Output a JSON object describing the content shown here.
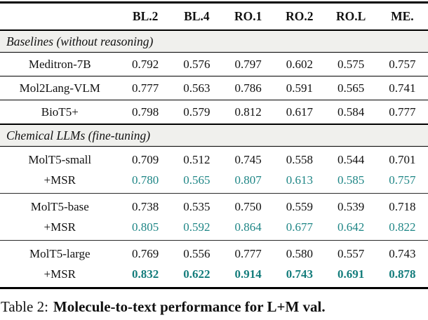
{
  "colors": {
    "highlight_teal": "#1f8686",
    "highlight_teal_bold": "#157d7c",
    "section_band_bg": "#f0f0ed",
    "rule_color": "#000000"
  },
  "header": {
    "cols": [
      "BL.2",
      "BL.4",
      "RO.1",
      "RO.2",
      "RO.L",
      "ME."
    ]
  },
  "sections": [
    {
      "title": "Baselines (without reasoning)",
      "rows": [
        {
          "label": "Meditron-7B",
          "v": [
            "0.792",
            "0.576",
            "0.797",
            "0.602",
            "0.575",
            "0.757"
          ]
        },
        {
          "label": "Mol2Lang-VLM",
          "v": [
            "0.777",
            "0.563",
            "0.786",
            "0.591",
            "0.565",
            "0.741"
          ]
        },
        {
          "label": "BioT5+",
          "v": [
            "0.798",
            "0.579",
            "0.812",
            "0.617",
            "0.584",
            "0.777"
          ]
        }
      ]
    },
    {
      "title": "Chemical LLMs (fine-tuning)",
      "rows": [
        {
          "label": "MolT5-small",
          "v": [
            "0.709",
            "0.512",
            "0.745",
            "0.558",
            "0.544",
            "0.701"
          ],
          "style": "normal"
        },
        {
          "label": "+MSR",
          "v": [
            "0.780",
            "0.565",
            "0.807",
            "0.613",
            "0.585",
            "0.757"
          ],
          "style": "teal"
        },
        {
          "label": "MolT5-base",
          "v": [
            "0.738",
            "0.535",
            "0.750",
            "0.559",
            "0.539",
            "0.718"
          ],
          "style": "normal"
        },
        {
          "label": "+MSR",
          "v": [
            "0.805",
            "0.592",
            "0.864",
            "0.677",
            "0.642",
            "0.822"
          ],
          "style": "teal"
        },
        {
          "label": "MolT5-large",
          "v": [
            "0.769",
            "0.556",
            "0.777",
            "0.580",
            "0.557",
            "0.743"
          ],
          "style": "normal"
        },
        {
          "label": "+MSR",
          "v": [
            "0.832",
            "0.622",
            "0.914",
            "0.743",
            "0.691",
            "0.878"
          ],
          "style": "teal-bold"
        }
      ]
    }
  ],
  "caption": {
    "prefix": "Table 2:",
    "title": "Molecule-to-text performance for L+M val."
  }
}
